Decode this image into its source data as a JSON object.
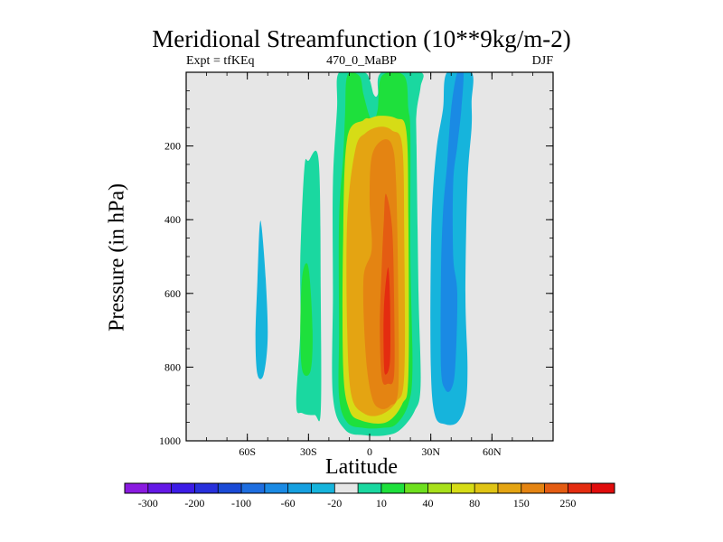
{
  "title": "Meridional Streamfunction (10**9kg/m-2)",
  "subtitle_left": "Expt = tfKEq",
  "subtitle_center": "470_0_MaBP",
  "subtitle_right": "DJF",
  "colors": {
    "background_field": "#e6e6e6",
    "frame": "#000000"
  },
  "chart_data": {
    "type": "heatmap",
    "title": "Meridional Streamfunction (10**9kg/m-2)",
    "xlabel": "Latitude",
    "ylabel": "Pressure (in hPa)",
    "xlim": [
      -90,
      90
    ],
    "ylim": [
      1000,
      0
    ],
    "x_ticks": [
      {
        "value": -60,
        "label": "60S"
      },
      {
        "value": -30,
        "label": "30S"
      },
      {
        "value": 0,
        "label": "0"
      },
      {
        "value": 30,
        "label": "30N"
      },
      {
        "value": 60,
        "label": "60N"
      }
    ],
    "y_ticks": [
      {
        "value": 200,
        "label": "200"
      },
      {
        "value": 400,
        "label": "400"
      },
      {
        "value": 600,
        "label": "600"
      },
      {
        "value": 800,
        "label": "800"
      },
      {
        "value": 1000,
        "label": "1000"
      }
    ],
    "colorbar": {
      "bins": [
        {
          "color": "#8a1ae0",
          "label": "-300"
        },
        {
          "color": "#6418e6",
          "label": ""
        },
        {
          "color": "#3c1ce6",
          "label": "-200"
        },
        {
          "color": "#2830dc",
          "label": ""
        },
        {
          "color": "#1a4ad6",
          "label": "-100"
        },
        {
          "color": "#1e6ee0",
          "label": ""
        },
        {
          "color": "#1a8ae4",
          "label": "-60"
        },
        {
          "color": "#16a0e0",
          "label": ""
        },
        {
          "color": "#16b4dc",
          "label": "-20"
        },
        {
          "color": "#e6e6e6",
          "label": ""
        },
        {
          "color": "#1ad8a0",
          "label": "10"
        },
        {
          "color": "#1ee03c",
          "label": ""
        },
        {
          "color": "#6ee01e",
          "label": "40"
        },
        {
          "color": "#a8e01a",
          "label": ""
        },
        {
          "color": "#d6dc16",
          "label": "80"
        },
        {
          "color": "#e0c414",
          "label": ""
        },
        {
          "color": "#e4a412",
          "label": "150"
        },
        {
          "color": "#e48412",
          "label": ""
        },
        {
          "color": "#e45c12",
          "label": "250"
        },
        {
          "color": "#e42c10",
          "label": ""
        },
        {
          "color": "#e00c0c",
          "label": ""
        }
      ]
    },
    "contours": [
      {
        "level": "-20",
        "color": "#16b4dc",
        "polygon": [
          [
            -53,
            420
          ],
          [
            -51,
            560
          ],
          [
            -50,
            720
          ],
          [
            -52,
            820
          ],
          [
            -55,
            820
          ],
          [
            -56,
            720
          ],
          [
            -55,
            560
          ],
          [
            -54,
            420
          ]
        ]
      },
      {
        "level": "10",
        "color": "#1ad8a0",
        "polygon": [
          [
            -30,
            240
          ],
          [
            -25,
            240
          ],
          [
            -24,
            600
          ],
          [
            -24,
            920
          ],
          [
            -27,
            930
          ],
          [
            -33,
            925
          ],
          [
            -36,
            900
          ],
          [
            -34,
            700
          ],
          [
            -34,
            500
          ],
          [
            -32,
            260
          ]
        ]
      },
      {
        "level": "40",
        "color": "#1ee03c",
        "polygon": [
          [
            -33,
            550
          ],
          [
            -30,
            530
          ],
          [
            -28,
            700
          ],
          [
            -29,
            810
          ],
          [
            -33,
            810
          ],
          [
            -34,
            700
          ]
        ]
      },
      {
        "level": "10",
        "color": "#1ad8a0",
        "polygon": [
          [
            -15,
            0
          ],
          [
            -3,
            0
          ],
          [
            0,
            20
          ],
          [
            2,
            60
          ],
          [
            4,
            60
          ],
          [
            6,
            0
          ],
          [
            25,
            0
          ],
          [
            25,
            40
          ],
          [
            23,
            110
          ],
          [
            23,
            200
          ],
          [
            24,
            600
          ],
          [
            25,
            850
          ],
          [
            22,
            920
          ],
          [
            15,
            970
          ],
          [
            8,
            985
          ],
          [
            -2,
            985
          ],
          [
            -12,
            970
          ],
          [
            -18,
            880
          ],
          [
            -18,
            600
          ],
          [
            -18,
            300
          ],
          [
            -16,
            100
          ]
        ]
      },
      {
        "level": "40",
        "color": "#1ee03c",
        "polygon": [
          [
            -11,
            10
          ],
          [
            -5,
            10
          ],
          [
            -3,
            60
          ],
          [
            0,
            120
          ],
          [
            2,
            130
          ],
          [
            4,
            100
          ],
          [
            6,
            10
          ],
          [
            17,
            10
          ],
          [
            19,
            100
          ],
          [
            20,
            170
          ],
          [
            20,
            500
          ],
          [
            21,
            800
          ],
          [
            19,
            900
          ],
          [
            13,
            955
          ],
          [
            6,
            965
          ],
          [
            -3,
            965
          ],
          [
            -11,
            950
          ],
          [
            -15,
            880
          ],
          [
            -15,
            700
          ],
          [
            -15,
            400
          ],
          [
            -13,
            230
          ],
          [
            -12,
            110
          ]
        ]
      },
      {
        "level": "80",
        "color": "#d6dc16",
        "polygon": [
          [
            -3,
            130
          ],
          [
            0,
            125
          ],
          [
            5,
            118
          ],
          [
            13,
            125
          ],
          [
            18,
            160
          ],
          [
            19,
            400
          ],
          [
            19,
            820
          ],
          [
            16,
            900
          ],
          [
            8,
            950
          ],
          [
            -4,
            945
          ],
          [
            -10,
            915
          ],
          [
            -13,
            800
          ],
          [
            -13,
            450
          ],
          [
            -11,
            180
          ]
        ]
      },
      {
        "level": "150",
        "color": "#e4a412",
        "polygon": [
          [
            -2,
            165
          ],
          [
            5,
            148
          ],
          [
            11,
            158
          ],
          [
            16,
            200
          ],
          [
            17,
            450
          ],
          [
            17,
            820
          ],
          [
            13,
            895
          ],
          [
            5,
            930
          ],
          [
            -3,
            925
          ],
          [
            -9,
            875
          ],
          [
            -11,
            700
          ],
          [
            -11,
            400
          ],
          [
            -7,
            210
          ]
        ]
      },
      {
        "level": "250",
        "color": "#e48412",
        "polygon": [
          [
            6,
            185
          ],
          [
            11,
            198
          ],
          [
            13,
            300
          ],
          [
            14,
            600
          ],
          [
            14,
            860
          ],
          [
            10,
            905
          ],
          [
            5,
            912
          ],
          [
            1,
            880
          ],
          [
            -2,
            760
          ],
          [
            -3,
            560
          ],
          [
            1,
            480
          ],
          [
            0,
            350
          ],
          [
            1,
            230
          ]
        ]
      },
      {
        "level": "",
        "color": "#e45c12",
        "polygon": [
          [
            8,
            330
          ],
          [
            11,
            420
          ],
          [
            12,
            620
          ],
          [
            12,
            820
          ],
          [
            9,
            845
          ],
          [
            6,
            830
          ],
          [
            5,
            690
          ],
          [
            6,
            520
          ],
          [
            7,
            400
          ]
        ]
      },
      {
        "level": "",
        "color": "#e42c10",
        "polygon": [
          [
            9,
            530
          ],
          [
            10,
            620
          ],
          [
            10,
            780
          ],
          [
            8,
            820
          ],
          [
            7,
            790
          ],
          [
            7,
            640
          ]
        ]
      },
      {
        "level": "-20",
        "color": "#16b4dc",
        "polygon": [
          [
            38,
            0
          ],
          [
            50,
            0
          ],
          [
            50,
            80
          ],
          [
            50,
            150
          ],
          [
            48,
            300
          ],
          [
            47,
            600
          ],
          [
            48,
            800
          ],
          [
            47,
            900
          ],
          [
            43,
            950
          ],
          [
            37,
            955
          ],
          [
            32,
            930
          ],
          [
            30,
            800
          ],
          [
            30,
            500
          ],
          [
            31,
            330
          ],
          [
            33,
            200
          ],
          [
            36,
            100
          ]
        ]
      },
      {
        "level": "-60",
        "color": "#1a8ae4",
        "polygon": [
          [
            43,
            0
          ],
          [
            46,
            0
          ],
          [
            45,
            100
          ],
          [
            43,
            200
          ],
          [
            41,
            300
          ],
          [
            41,
            500
          ],
          [
            43,
            600
          ],
          [
            42,
            800
          ],
          [
            40,
            860
          ],
          [
            37,
            860
          ],
          [
            35,
            800
          ],
          [
            35,
            550
          ],
          [
            36,
            380
          ],
          [
            38,
            250
          ],
          [
            40,
            100
          ]
        ]
      }
    ]
  }
}
